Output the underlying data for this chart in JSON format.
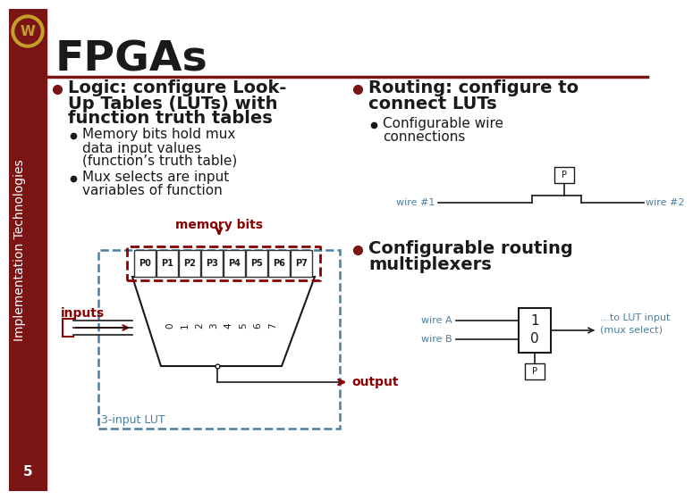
{
  "title": "FPGAs",
  "title_color": "#1a1a1a",
  "title_fontsize": 34,
  "bg_color": "#ffffff",
  "sidebar_color": "#7B1515",
  "sidebar_text": "Implementation Technologies",
  "sidebar_text_color": "#ffffff",
  "sidebar_fontsize": 10,
  "header_line_color": "#7B1515",
  "slide_number": "5",
  "memory_bits_label": "memory bits",
  "memory_bits_color": "#8B0000",
  "inputs_label": "inputs",
  "output_label": "output",
  "lut_label": "3-input LUT",
  "lut_cells": [
    "P0",
    "P1",
    "P2",
    "P3",
    "P4",
    "P5",
    "P6",
    "P7"
  ],
  "mux_inputs": [
    "0",
    "1",
    "2",
    "3",
    "4",
    "5",
    "6",
    "7"
  ],
  "wire1_label": "wire #1",
  "wire2_label": "wire #2",
  "p_label": "P",
  "wireA_label": "wire A",
  "wireB_label": "wire B",
  "mux_out_label": "...to LUT input\n(mux select)",
  "p2_label": "P",
  "diagram_color": "#4A7FA0",
  "text_color": "#1a1a1a",
  "bullet_color": "#7B1515"
}
